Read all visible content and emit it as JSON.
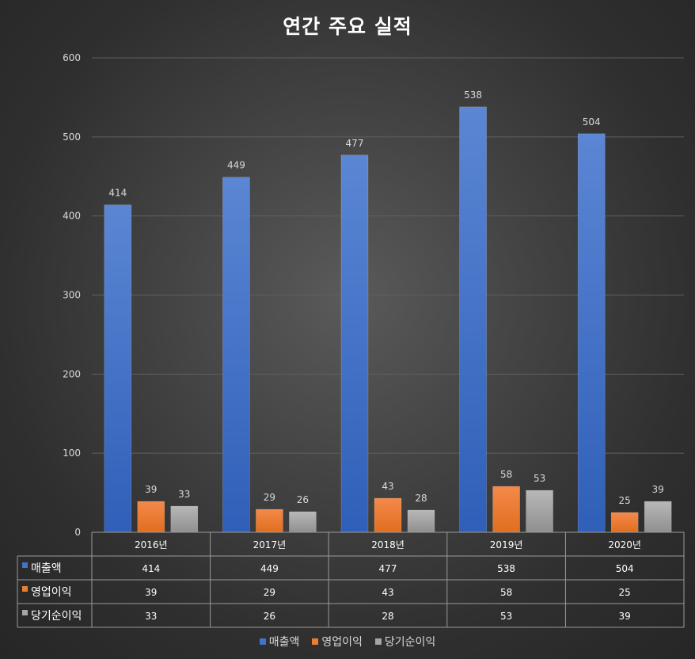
{
  "chart_data": {
    "type": "bar",
    "title": "연간 주요 실적",
    "categories": [
      "2016년",
      "2017년",
      "2018년",
      "2019년",
      "2020년"
    ],
    "series": [
      {
        "name": "매출액",
        "values": [
          414,
          449,
          477,
          538,
          504
        ],
        "color": "#4472c4"
      },
      {
        "name": "영업이익",
        "values": [
          39,
          29,
          43,
          58,
          25
        ],
        "color": "#ed7d31"
      },
      {
        "name": "당기순이익",
        "values": [
          33,
          26,
          28,
          53,
          39
        ],
        "color": "#a5a5a5"
      }
    ],
    "ylim": [
      0,
      600
    ],
    "yticks": [
      0,
      100,
      200,
      300,
      400,
      500,
      600
    ],
    "grid": true,
    "data_table": true,
    "legend_position": "bottom"
  }
}
